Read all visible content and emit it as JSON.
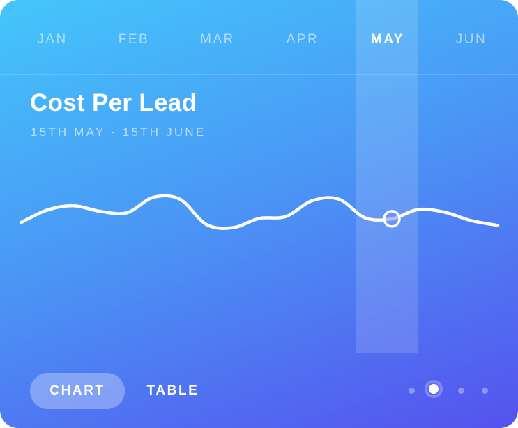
{
  "months": [
    "JAN",
    "FEB",
    "MAR",
    "APR",
    "MAY",
    "JUN"
  ],
  "active_month": "MAY",
  "card": {
    "title": "Cost Per Lead",
    "subtitle": "15TH MAY - 15TH JUNE"
  },
  "chart_data": {
    "type": "line",
    "title": "Cost Per Lead",
    "x": [
      0,
      1,
      2,
      3,
      4,
      5,
      6,
      7,
      8,
      9,
      10,
      11,
      12,
      13,
      14,
      15,
      16,
      17,
      18
    ],
    "series": [
      {
        "values": [
          0.16,
          0.43,
          0.52,
          0.4,
          0.37,
          0.7,
          0.66,
          0.12,
          0.05,
          0.25,
          0.29,
          0.63,
          0.66,
          0.26,
          0.24,
          0.44,
          0.38,
          0.2,
          0.1
        ]
      }
    ],
    "highlight_index": 14,
    "highlight_label": "MAY",
    "grid": false,
    "axes_visible": false,
    "line_color": "#ffffff"
  },
  "tabs": {
    "chart_label": "CHART",
    "table_label": "TABLE",
    "active": "CHART"
  },
  "pager": {
    "count": 4,
    "active_index": 1
  },
  "colors": {
    "gradient_start": "#44c6fb",
    "gradient_end": "#5552ee",
    "text": "#ffffff"
  }
}
